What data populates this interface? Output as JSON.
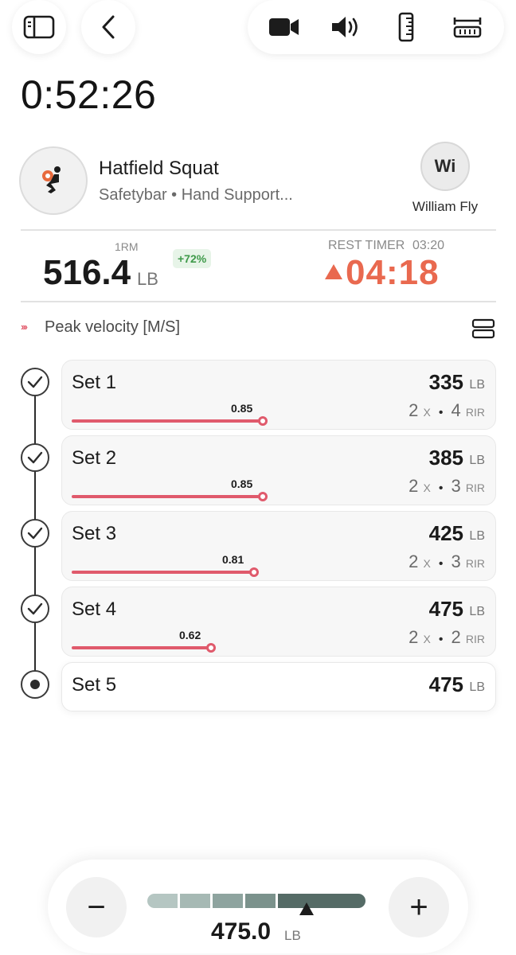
{
  "toolbar": {
    "sidebar_icon": "sidebar-toggle-icon",
    "back_icon": "chevron-left-icon",
    "actions": [
      "video-camera-icon",
      "speaker-icon",
      "ruler-icon",
      "rack-height-icon"
    ]
  },
  "session": {
    "elapsed": "0:52:26"
  },
  "exercise": {
    "name": "Hatfield Squat",
    "subtitle": "Safetybar • Hand Support...",
    "icon": "squat-figure-icon"
  },
  "athlete": {
    "initials": "Wi",
    "name": "William Fly"
  },
  "stats": {
    "one_rm_label": "1RM",
    "one_rm_value": "516.4",
    "one_rm_unit": "LB",
    "one_rm_change": "+72%",
    "rest_label": "REST TIMER",
    "rest_target": "03:20",
    "rest_value": "04:18"
  },
  "metric": {
    "chevrons": "›››",
    "label": "Peak velocity [M/S]",
    "layout_icon": "stacked-layout-icon"
  },
  "sets": [
    {
      "label": "Set 1",
      "weight": "335",
      "unit": "LB",
      "velocity": "0.85",
      "velocity_num": 0.85,
      "reps": "2",
      "reps_unit": "X",
      "rir": "4",
      "rir_unit": "RIR",
      "status": "done"
    },
    {
      "label": "Set 2",
      "weight": "385",
      "unit": "LB",
      "velocity": "0.85",
      "velocity_num": 0.85,
      "reps": "2",
      "reps_unit": "X",
      "rir": "3",
      "rir_unit": "RIR",
      "status": "done"
    },
    {
      "label": "Set 3",
      "weight": "425",
      "unit": "LB",
      "velocity": "0.81",
      "velocity_num": 0.81,
      "reps": "2",
      "reps_unit": "X",
      "rir": "3",
      "rir_unit": "RIR",
      "status": "done"
    },
    {
      "label": "Set 4",
      "weight": "475",
      "unit": "LB",
      "velocity": "0.62",
      "velocity_num": 0.62,
      "reps": "2",
      "reps_unit": "X",
      "rir": "2",
      "rir_unit": "RIR",
      "status": "done"
    },
    {
      "label": "Set 5",
      "weight": "475",
      "unit": "LB",
      "status": "active"
    }
  ],
  "weight_selector": {
    "value": "475.0",
    "unit": "LB",
    "minus": "−",
    "plus": "+",
    "scale_colors": [
      "#b5c6c2",
      "#a6b9b4",
      "#8ea49f",
      "#7b928c",
      "#556b66"
    ]
  },
  "colors": {
    "accent": "#e05a6c",
    "rest_overtime": "#e9694f",
    "positive": "#3f9a4a"
  }
}
